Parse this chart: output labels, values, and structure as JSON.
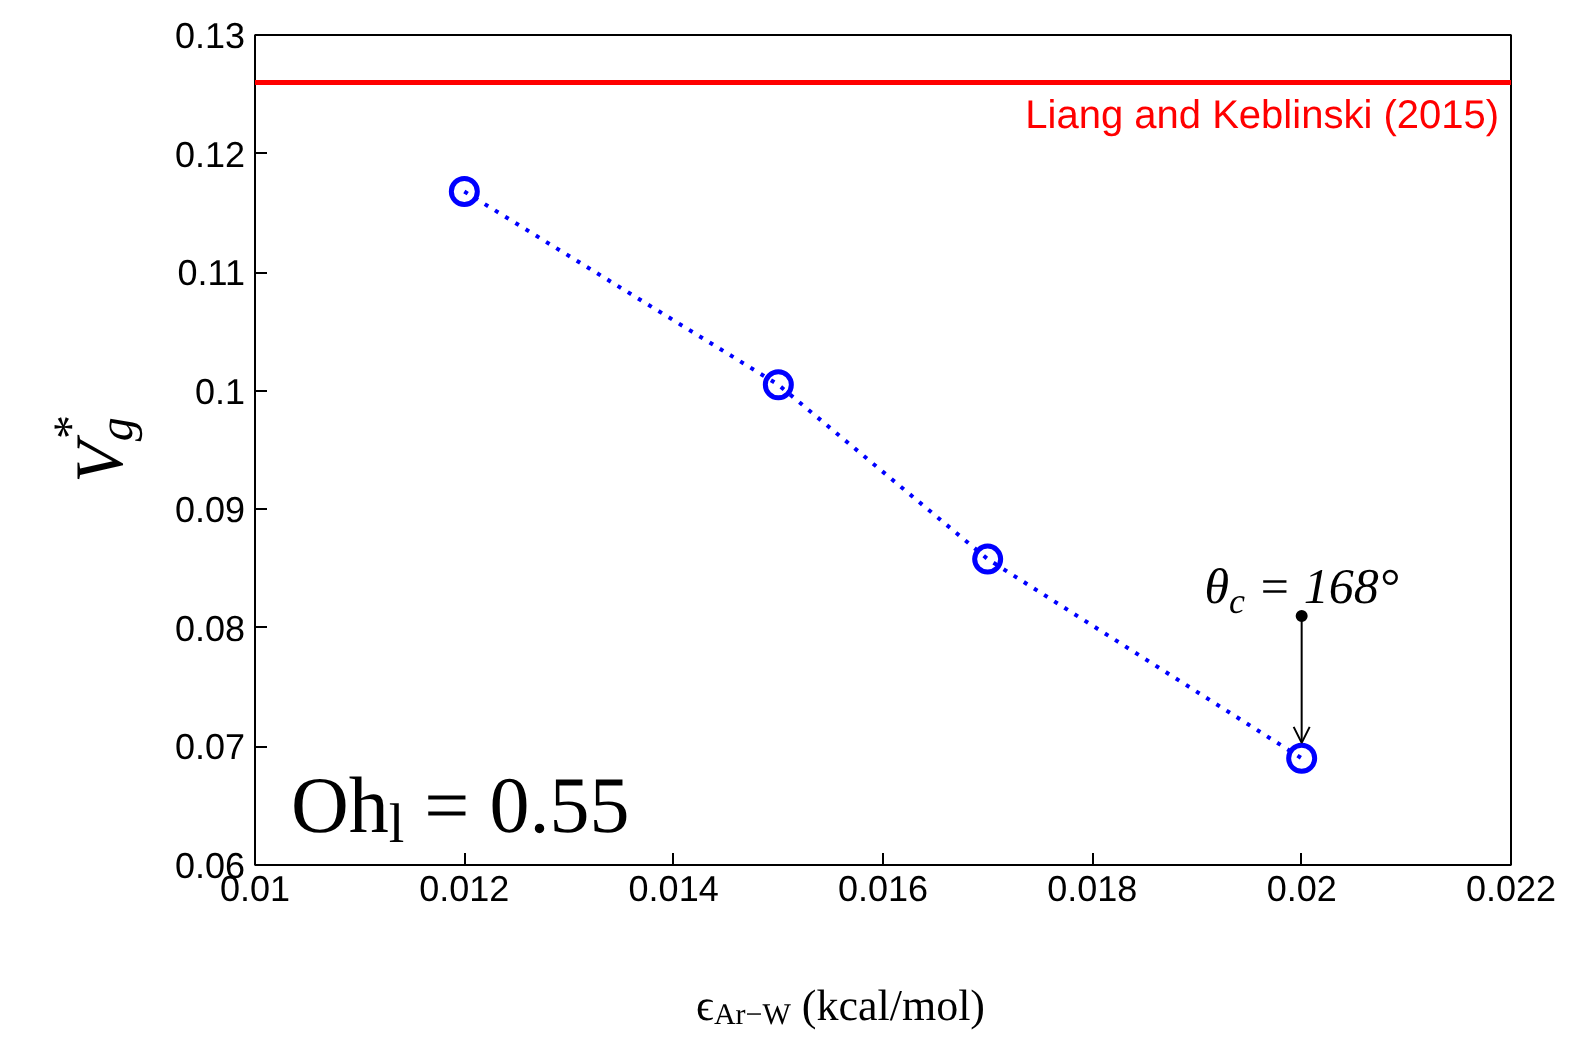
{
  "chart_data": {
    "type": "line",
    "xlabel": "ϵ$_{Ar−W}$ (kcal/mol)",
    "ylabel": "V$_{g}$$^{*}$",
    "x": [
      0.012,
      0.015,
      0.017,
      0.02
    ],
    "series": [
      {
        "color": "#0000ff",
        "values": [
          0.1168,
          0.1005,
          0.0858,
          0.069
        ]
      }
    ],
    "marker": "circle",
    "line_style": "dotted",
    "grid": false,
    "xlim": [
      0.01,
      0.022
    ],
    "xticks": [
      0.01,
      0.012,
      0.014,
      0.016,
      0.018,
      0.02,
      0.022
    ],
    "ylim": [
      0.06,
      0.13
    ],
    "yticks": [
      0.06,
      0.07,
      0.08,
      0.09,
      0.1,
      0.11,
      0.12,
      0.13
    ],
    "ref_lines": [
      {
        "axis": "y",
        "value": 0.126,
        "label": "Liang and Keblinski (2015)",
        "color": "#ff0000",
        "line_style": "solid"
      }
    ],
    "annotations": [
      {
        "text": "θ$_{c}$ = 168°",
        "x": 0.02,
        "y": 0.069
      },
      "Oh$_{l}$ = 0.55"
    ]
  }
}
